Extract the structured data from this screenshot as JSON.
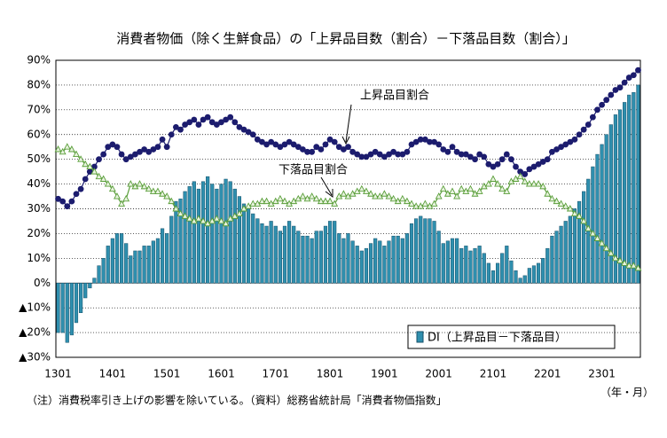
{
  "chart_data": {
    "type": "combo",
    "title": "消費者物価（除く生鮮食品）の「上昇品目数（割合）－下落品目数（割合）」",
    "footnote": "（注）消費税率引き上げの影響を除いている。（資料）総務省統計局「消費者物価指数」",
    "x_unit": "（年・月）",
    "categories": [
      "1301",
      null,
      null,
      null,
      null,
      null,
      null,
      null,
      null,
      null,
      null,
      null,
      "1401",
      null,
      null,
      null,
      null,
      null,
      null,
      null,
      null,
      null,
      null,
      null,
      "1501",
      null,
      null,
      null,
      null,
      null,
      null,
      null,
      null,
      null,
      null,
      null,
      "1601",
      null,
      null,
      null,
      null,
      null,
      null,
      null,
      null,
      null,
      null,
      null,
      "1701",
      null,
      null,
      null,
      null,
      null,
      null,
      null,
      null,
      null,
      null,
      null,
      "1801",
      null,
      null,
      null,
      null,
      null,
      null,
      null,
      null,
      null,
      null,
      null,
      "1901",
      null,
      null,
      null,
      null,
      null,
      null,
      null,
      null,
      null,
      null,
      null,
      "2001",
      null,
      null,
      null,
      null,
      null,
      null,
      null,
      null,
      null,
      null,
      null,
      "2101",
      null,
      null,
      null,
      null,
      null,
      null,
      null,
      null,
      null,
      null,
      null,
      "2201",
      null,
      null,
      null,
      null,
      null,
      null,
      null,
      null,
      null,
      null,
      null,
      "2301",
      null,
      null,
      null,
      null,
      null,
      null,
      null,
      null
    ],
    "series": [
      {
        "name": "DI（上昇品目－下落品目）",
        "type": "bar",
        "color": "#2f8fae",
        "values": [
          -20,
          -20,
          -24,
          -21,
          -16,
          -12,
          -6,
          -2,
          2,
          7,
          10,
          15,
          18,
          20,
          20,
          16,
          11,
          13,
          13,
          15,
          15,
          17,
          18,
          22,
          20,
          27,
          33,
          34,
          37,
          39,
          41,
          38,
          41,
          43,
          40,
          38,
          40,
          42,
          41,
          38,
          35,
          32,
          30,
          28,
          26,
          24,
          23,
          25,
          23,
          21,
          23,
          25,
          23,
          21,
          19,
          19,
          18,
          21,
          21,
          23,
          25,
          25,
          20,
          18,
          20,
          17,
          15,
          13,
          14,
          16,
          18,
          17,
          15,
          17,
          19,
          19,
          18,
          20,
          24,
          26,
          27,
          26,
          26,
          25,
          21,
          16,
          17,
          18,
          18,
          14,
          15,
          13,
          14,
          15,
          12,
          8,
          5,
          8,
          12,
          15,
          9,
          5,
          2,
          3,
          6,
          7,
          8,
          10,
          14,
          19,
          21,
          23,
          25,
          27,
          30,
          33,
          37,
          42,
          47,
          52,
          56,
          60,
          64,
          68,
          70,
          73,
          76,
          77,
          80
        ]
      },
      {
        "name": "上昇品目割合",
        "type": "line",
        "marker": "circle",
        "color": "#1c1c6e",
        "values": [
          34,
          33,
          31,
          33,
          36,
          38,
          42,
          45,
          47,
          50,
          52,
          55,
          56,
          55,
          52,
          50,
          51,
          52,
          53,
          54,
          53,
          54,
          55,
          58,
          55,
          60,
          63,
          62,
          64,
          65,
          66,
          64,
          66,
          67,
          65,
          64,
          65,
          66,
          67,
          65,
          63,
          62,
          61,
          60,
          58,
          57,
          56,
          57,
          56,
          55,
          56,
          57,
          56,
          55,
          54,
          53,
          53,
          55,
          54,
          56,
          58,
          57,
          55,
          54,
          55,
          53,
          52,
          51,
          51,
          52,
          53,
          52,
          51,
          52,
          53,
          52,
          52,
          53,
          56,
          57,
          58,
          58,
          57,
          57,
          56,
          54,
          53,
          55,
          53,
          52,
          52,
          51,
          50,
          52,
          51,
          48,
          47,
          48,
          50,
          52,
          50,
          47,
          45,
          44,
          46,
          47,
          48,
          49,
          50,
          53,
          54,
          55,
          56,
          57,
          58,
          60,
          62,
          64,
          67,
          70,
          72,
          74,
          76,
          78,
          79,
          81,
          83,
          84,
          86
        ]
      },
      {
        "name": "下落品目割合",
        "type": "line",
        "marker": "triangle",
        "color": "#5a9e3a",
        "values": [
          54,
          53,
          55,
          54,
          52,
          50,
          48,
          47,
          45,
          43,
          42,
          40,
          38,
          35,
          32,
          34,
          40,
          39,
          40,
          39,
          38,
          37,
          37,
          36,
          35,
          33,
          30,
          28,
          27,
          26,
          25,
          26,
          25,
          24,
          25,
          26,
          25,
          24,
          26,
          27,
          28,
          30,
          31,
          32,
          32,
          33,
          33,
          32,
          33,
          34,
          33,
          32,
          33,
          34,
          35,
          34,
          35,
          34,
          33,
          33,
          33,
          32,
          35,
          36,
          35,
          36,
          37,
          38,
          37,
          36,
          35,
          35,
          36,
          35,
          34,
          33,
          34,
          33,
          32,
          31,
          31,
          32,
          31,
          32,
          35,
          38,
          36,
          37,
          35,
          38,
          37,
          38,
          36,
          37,
          39,
          40,
          42,
          40,
          38,
          37,
          41,
          42,
          43,
          41,
          40,
          40,
          40,
          39,
          36,
          34,
          33,
          32,
          31,
          30,
          28,
          27,
          25,
          22,
          20,
          18,
          16,
          14,
          12,
          10,
          9,
          8,
          7,
          7,
          6
        ]
      }
    ],
    "ylim": [
      -30,
      90
    ],
    "yticks": [
      {
        "value": -30,
        "label": "▲30%"
      },
      {
        "value": -20,
        "label": "▲20%"
      },
      {
        "value": -10,
        "label": "▲10%"
      },
      {
        "value": 0,
        "label": "0%"
      },
      {
        "value": 10,
        "label": "10%"
      },
      {
        "value": 20,
        "label": "20%"
      },
      {
        "value": 30,
        "label": "30%"
      },
      {
        "value": 40,
        "label": "40%"
      },
      {
        "value": 50,
        "label": "50%"
      },
      {
        "value": 60,
        "label": "60%"
      },
      {
        "value": 70,
        "label": "70%"
      },
      {
        "value": 80,
        "label": "80%"
      },
      {
        "value": 90,
        "label": "90%"
      }
    ],
    "grid": true,
    "legend": "lower right"
  }
}
